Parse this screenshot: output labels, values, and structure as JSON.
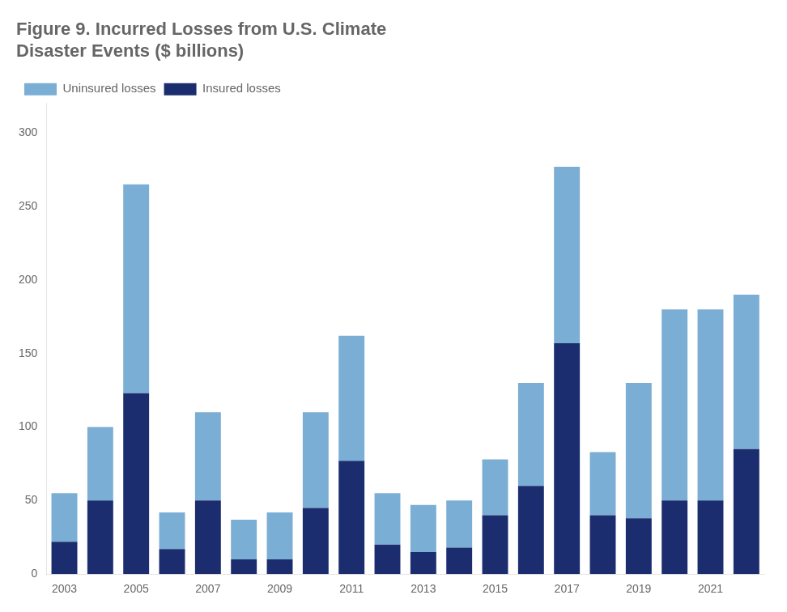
{
  "chart_data": {
    "type": "bar",
    "title": [
      "Figure 9. Incurred Losses from U.S. Climate",
      "Disaster Events ($ billions)"
    ],
    "categories": [
      "2003",
      null,
      "2005",
      null,
      "2007",
      null,
      "2009",
      null,
      "2011",
      null,
      "2013",
      null,
      "2015",
      null,
      "2017",
      null,
      "2019",
      null,
      "2021",
      null
    ],
    "series": [
      {
        "name": "Insured losses",
        "color": "#1b2d6e",
        "values": [
          22,
          50,
          123,
          17,
          50,
          10,
          10,
          45,
          77,
          20,
          15,
          18,
          40,
          60,
          157,
          40,
          38,
          50,
          50,
          85
        ]
      },
      {
        "name": "Uninsured losses",
        "color": "#7aaed4",
        "values": [
          33,
          50,
          142,
          25,
          60,
          27,
          32,
          65,
          85,
          35,
          32,
          32,
          38,
          70,
          120,
          43,
          92,
          130,
          130,
          105
        ]
      }
    ],
    "stacked": true,
    "ylim": [
      0,
      320
    ],
    "yticks": [
      0,
      50,
      100,
      150,
      200,
      250,
      300
    ],
    "grid": false,
    "legend": "upper left"
  }
}
